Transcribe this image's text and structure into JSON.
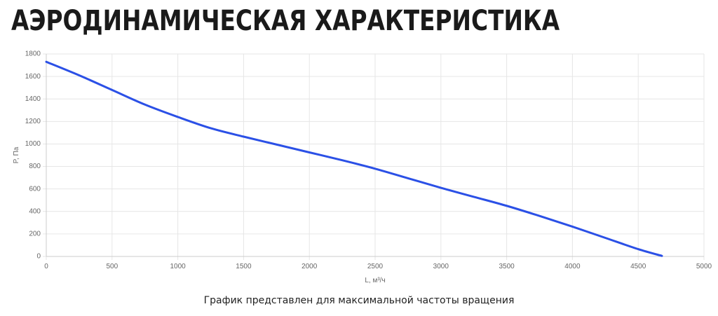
{
  "header": {
    "title": "АЭРОДИНАМИЧЕСКАЯ ХАРАКТЕРИСТИКА"
  },
  "caption": "График представлен для максимальной частоты вращения",
  "colors": {
    "series": "#2b50e6",
    "grid": "#e6e6e6",
    "text": "#666666"
  },
  "chart_data": {
    "type": "line",
    "xlabel": "L, м³/ч",
    "ylabel": "P, Па",
    "xlim": [
      0,
      5000
    ],
    "ylim": [
      0,
      1800
    ],
    "x_ticks": [
      0,
      500,
      1000,
      1500,
      2000,
      2500,
      3000,
      3500,
      4000,
      4500,
      5000
    ],
    "y_ticks": [
      0,
      200,
      400,
      600,
      800,
      1000,
      1200,
      1400,
      1600,
      1800
    ],
    "grid": true,
    "series": [
      {
        "x": [
          0,
          250,
          500,
          750,
          1000,
          1250,
          1500,
          1750,
          2000,
          2250,
          2500,
          2750,
          3000,
          3250,
          3500,
          3750,
          4000,
          4250,
          4500,
          4680
        ],
        "y": [
          1730,
          1610,
          1480,
          1350,
          1240,
          1140,
          1065,
          995,
          925,
          855,
          780,
          695,
          610,
          530,
          450,
          360,
          265,
          165,
          65,
          5
        ]
      }
    ]
  }
}
